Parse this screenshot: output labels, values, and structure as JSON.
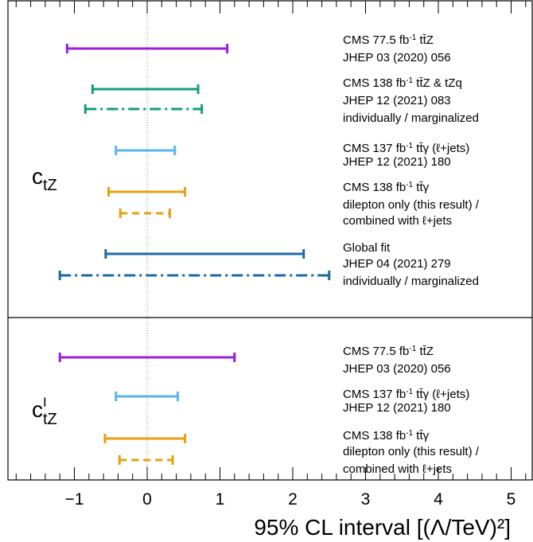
{
  "chart_data": {
    "type": "interval",
    "xlabel": "95% CL interval [(Λ/TeV)²]",
    "xlim": [
      -1.9,
      5.3
    ],
    "x_ticks": [
      "−1",
      "0",
      "1",
      "2",
      "3",
      "4",
      "5"
    ],
    "x_tick_values": [
      -1,
      0,
      1,
      2,
      3,
      4,
      5
    ],
    "reference_line": 0,
    "colors": {
      "purple": "#9c1fdc",
      "green": "#109e7e",
      "lightblue": "#5ab6ea",
      "orange": "#e6a012",
      "blue": "#1b6aa2"
    },
    "panels": [
      {
        "parameter": {
          "base": "c",
          "sub": "tZ",
          "sup": ""
        },
        "intervals": [
          {
            "low": -1.1,
            "high": 1.1,
            "color": "purple",
            "style": "solid"
          },
          {
            "low": -0.75,
            "high": 0.7,
            "color": "green",
            "style": "solid"
          },
          {
            "low": -0.85,
            "high": 0.75,
            "color": "green",
            "style": "dashdot"
          },
          {
            "low": -0.43,
            "high": 0.38,
            "color": "lightblue",
            "style": "solid"
          },
          {
            "low": -0.53,
            "high": 0.52,
            "color": "orange",
            "style": "solid"
          },
          {
            "low": -0.37,
            "high": 0.31,
            "color": "orange",
            "style": "dashed"
          },
          {
            "low": -0.57,
            "high": 2.15,
            "color": "blue",
            "style": "solid"
          },
          {
            "low": -1.2,
            "high": 2.5,
            "color": "blue",
            "style": "dashdot"
          }
        ],
        "labels": [
          {
            "lines": [
              {
                "parts": [
                  {
                    "t": "CMS 77.5 fb"
                  },
                  {
                    "t": "-1",
                    "sup": true
                  },
                  {
                    "t": " tt̄Z"
                  }
                ]
              },
              {
                "parts": [
                  {
                    "t": "JHEP 03 (2020) 056"
                  }
                ]
              }
            ]
          },
          {
            "lines": [
              {
                "parts": [
                  {
                    "t": "CMS 138 fb"
                  },
                  {
                    "t": "-1",
                    "sup": true
                  },
                  {
                    "t": " tt̄Z & tZq"
                  }
                ]
              },
              {
                "parts": [
                  {
                    "t": "JHEP 12 (2021) 083"
                  }
                ]
              },
              {
                "parts": [
                  {
                    "t": "individually / marginalized"
                  }
                ]
              }
            ]
          },
          {
            "lines": [
              {
                "parts": [
                  {
                    "t": "CMS 137 fb"
                  },
                  {
                    "t": "-1",
                    "sup": true
                  },
                  {
                    "t": " tt̄γ (ℓ+jets)"
                  }
                ]
              },
              {
                "parts": [
                  {
                    "t": "JHEP 12 (2021) 180"
                  }
                ]
              }
            ]
          },
          {
            "lines": [
              {
                "parts": [
                  {
                    "t": "CMS 138 fb"
                  },
                  {
                    "t": "-1",
                    "sup": true
                  },
                  {
                    "t": " tt̄γ"
                  }
                ]
              },
              {
                "parts": [
                  {
                    "t": "dilepton only (this result) /"
                  }
                ]
              },
              {
                "parts": [
                  {
                    "t": "combined with ℓ+jets"
                  }
                ]
              }
            ]
          },
          {
            "lines": [
              {
                "parts": [
                  {
                    "t": "Global fit"
                  }
                ]
              },
              {
                "parts": [
                  {
                    "t": "JHEP 04 (2021) 279"
                  }
                ]
              },
              {
                "parts": [
                  {
                    "t": "individually / marginalized"
                  }
                ]
              }
            ]
          }
        ]
      },
      {
        "parameter": {
          "base": "c",
          "sub": "tZ",
          "sup": "I"
        },
        "intervals": [
          {
            "low": -1.2,
            "high": 1.2,
            "color": "purple",
            "style": "solid"
          },
          {
            "low": -0.43,
            "high": 0.42,
            "color": "lightblue",
            "style": "solid"
          },
          {
            "low": -0.58,
            "high": 0.52,
            "color": "orange",
            "style": "solid"
          },
          {
            "low": -0.38,
            "high": 0.35,
            "color": "orange",
            "style": "dashed"
          }
        ],
        "labels": [
          {
            "lines": [
              {
                "parts": [
                  {
                    "t": "CMS 77.5 fb"
                  },
                  {
                    "t": "-1",
                    "sup": true
                  },
                  {
                    "t": " tt̄Z"
                  }
                ]
              },
              {
                "parts": [
                  {
                    "t": "JHEP 03 (2020) 056"
                  }
                ]
              }
            ]
          },
          {
            "lines": [
              {
                "parts": [
                  {
                    "t": "CMS 137 fb"
                  },
                  {
                    "t": "-1",
                    "sup": true
                  },
                  {
                    "t": " tt̄γ (ℓ+jets)"
                  }
                ]
              },
              {
                "parts": [
                  {
                    "t": "JHEP 12 (2021) 180"
                  }
                ]
              }
            ]
          },
          {
            "lines": [
              {
                "parts": [
                  {
                    "t": "CMS 138 fb"
                  },
                  {
                    "t": "-1",
                    "sup": true
                  },
                  {
                    "t": " tt̄γ"
                  }
                ]
              },
              {
                "parts": [
                  {
                    "t": "dilepton only (this result) /"
                  }
                ]
              },
              {
                "parts": [
                  {
                    "t": "combined with ℓ+jets"
                  }
                ]
              }
            ]
          }
        ]
      }
    ]
  }
}
